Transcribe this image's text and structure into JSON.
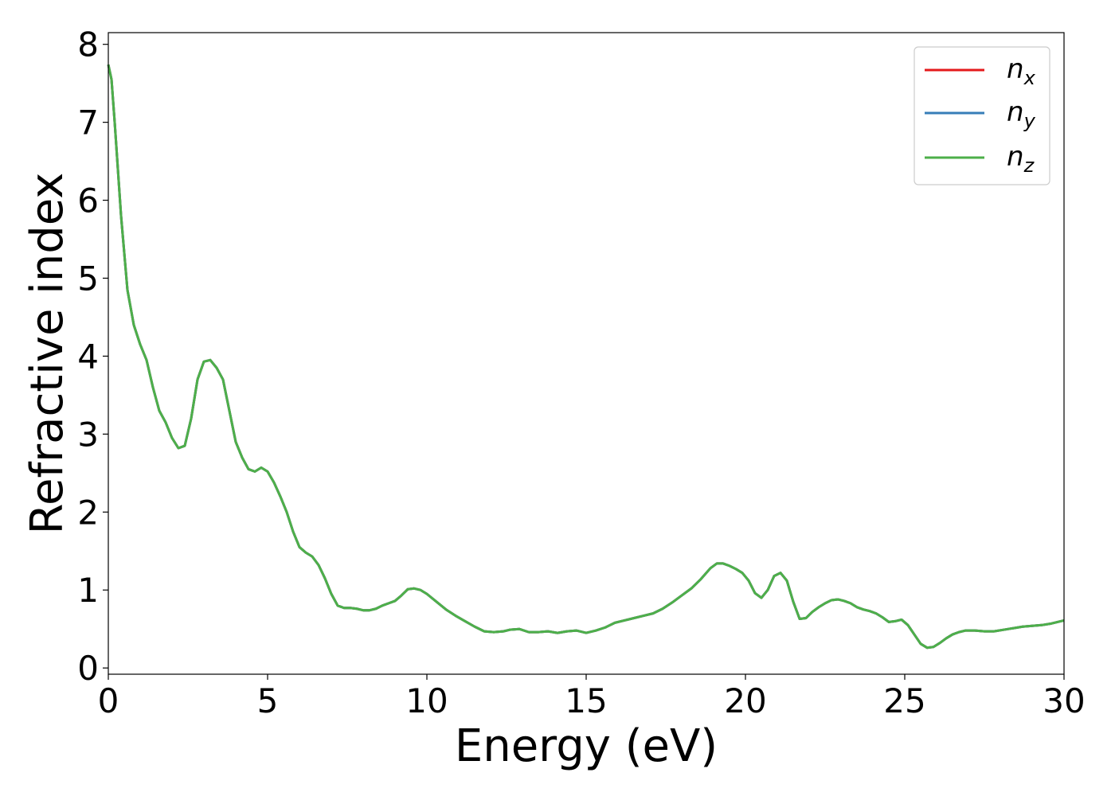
{
  "chart_data": {
    "type": "line",
    "xlabel": "Energy (eV)",
    "ylabel": "Refractive index",
    "xlim": [
      0,
      30
    ],
    "ylim": [
      -0.08,
      8.15
    ],
    "xticks": [
      0,
      5,
      10,
      15,
      20,
      25,
      30
    ],
    "yticks": [
      0,
      1,
      2,
      3,
      4,
      5,
      6,
      7,
      8
    ],
    "grid": false,
    "legend": {
      "placement": "top-right"
    },
    "x": [
      0.0,
      0.1,
      0.2,
      0.4,
      0.6,
      0.8,
      1.0,
      1.2,
      1.4,
      1.6,
      1.8,
      2.0,
      2.2,
      2.4,
      2.6,
      2.8,
      3.0,
      3.2,
      3.4,
      3.6,
      3.8,
      4.0,
      4.2,
      4.4,
      4.6,
      4.8,
      5.0,
      5.2,
      5.4,
      5.6,
      5.8,
      6.0,
      6.2,
      6.4,
      6.6,
      6.8,
      7.0,
      7.2,
      7.4,
      7.6,
      7.8,
      8.0,
      8.2,
      8.4,
      8.6,
      8.8,
      9.0,
      9.2,
      9.4,
      9.6,
      9.8,
      10.0,
      10.3,
      10.6,
      10.9,
      11.2,
      11.5,
      11.8,
      12.1,
      12.4,
      12.6,
      12.9,
      13.2,
      13.5,
      13.8,
      14.1,
      14.4,
      14.7,
      15.0,
      15.3,
      15.6,
      15.9,
      16.2,
      16.5,
      16.8,
      17.1,
      17.4,
      17.7,
      18.0,
      18.3,
      18.6,
      18.9,
      19.1,
      19.3,
      19.5,
      19.7,
      19.9,
      20.1,
      20.3,
      20.5,
      20.7,
      20.9,
      21.1,
      21.3,
      21.5,
      21.7,
      21.9,
      22.1,
      22.3,
      22.5,
      22.7,
      22.9,
      23.1,
      23.3,
      23.5,
      23.7,
      23.9,
      24.1,
      24.3,
      24.5,
      24.7,
      24.9,
      25.1,
      25.3,
      25.5,
      25.7,
      25.9,
      26.1,
      26.3,
      26.5,
      26.7,
      26.9,
      27.2,
      27.5,
      27.8,
      28.1,
      28.4,
      28.7,
      29.0,
      29.3,
      29.6,
      30.0
    ],
    "series": [
      {
        "name": "n_x",
        "color": "#e41a1c",
        "values": [
          7.74,
          7.55,
          7.0,
          5.8,
          4.85,
          4.4,
          4.15,
          3.95,
          3.6,
          3.3,
          3.15,
          2.95,
          2.82,
          2.85,
          3.2,
          3.7,
          3.93,
          3.95,
          3.85,
          3.7,
          3.3,
          2.9,
          2.7,
          2.55,
          2.52,
          2.57,
          2.52,
          2.38,
          2.2,
          2.0,
          1.75,
          1.55,
          1.48,
          1.43,
          1.32,
          1.15,
          0.95,
          0.8,
          0.77,
          0.77,
          0.76,
          0.74,
          0.74,
          0.76,
          0.8,
          0.83,
          0.86,
          0.93,
          1.01,
          1.02,
          1.0,
          0.95,
          0.85,
          0.75,
          0.67,
          0.6,
          0.53,
          0.47,
          0.46,
          0.47,
          0.49,
          0.5,
          0.46,
          0.46,
          0.47,
          0.45,
          0.47,
          0.48,
          0.45,
          0.48,
          0.52,
          0.58,
          0.61,
          0.64,
          0.67,
          0.7,
          0.76,
          0.84,
          0.93,
          1.02,
          1.14,
          1.28,
          1.34,
          1.34,
          1.31,
          1.27,
          1.22,
          1.12,
          0.96,
          0.9,
          1.0,
          1.18,
          1.22,
          1.12,
          0.85,
          0.63,
          0.64,
          0.72,
          0.78,
          0.83,
          0.87,
          0.88,
          0.86,
          0.83,
          0.78,
          0.75,
          0.73,
          0.7,
          0.65,
          0.59,
          0.6,
          0.62,
          0.55,
          0.43,
          0.31,
          0.26,
          0.27,
          0.32,
          0.38,
          0.43,
          0.46,
          0.48,
          0.48,
          0.47,
          0.47,
          0.49,
          0.51,
          0.53,
          0.54,
          0.55,
          0.57,
          0.61
        ]
      },
      {
        "name": "n_y",
        "color": "#377eb8",
        "values": [
          7.74,
          7.55,
          7.0,
          5.8,
          4.85,
          4.4,
          4.15,
          3.95,
          3.6,
          3.3,
          3.15,
          2.95,
          2.82,
          2.85,
          3.2,
          3.7,
          3.93,
          3.95,
          3.85,
          3.7,
          3.3,
          2.9,
          2.7,
          2.55,
          2.52,
          2.57,
          2.52,
          2.38,
          2.2,
          2.0,
          1.75,
          1.55,
          1.48,
          1.43,
          1.32,
          1.15,
          0.95,
          0.8,
          0.77,
          0.77,
          0.76,
          0.74,
          0.74,
          0.76,
          0.8,
          0.83,
          0.86,
          0.93,
          1.01,
          1.02,
          1.0,
          0.95,
          0.85,
          0.75,
          0.67,
          0.6,
          0.53,
          0.47,
          0.46,
          0.47,
          0.49,
          0.5,
          0.46,
          0.46,
          0.47,
          0.45,
          0.47,
          0.48,
          0.45,
          0.48,
          0.52,
          0.58,
          0.61,
          0.64,
          0.67,
          0.7,
          0.76,
          0.84,
          0.93,
          1.02,
          1.14,
          1.28,
          1.34,
          1.34,
          1.31,
          1.27,
          1.22,
          1.12,
          0.96,
          0.9,
          1.0,
          1.18,
          1.22,
          1.12,
          0.85,
          0.63,
          0.64,
          0.72,
          0.78,
          0.83,
          0.87,
          0.88,
          0.86,
          0.83,
          0.78,
          0.75,
          0.73,
          0.7,
          0.65,
          0.59,
          0.6,
          0.62,
          0.55,
          0.43,
          0.31,
          0.26,
          0.27,
          0.32,
          0.38,
          0.43,
          0.46,
          0.48,
          0.48,
          0.47,
          0.47,
          0.49,
          0.51,
          0.53,
          0.54,
          0.55,
          0.57,
          0.61
        ]
      },
      {
        "name": "n_z",
        "color": "#4daf4a",
        "values": [
          7.74,
          7.55,
          7.0,
          5.8,
          4.85,
          4.4,
          4.15,
          3.95,
          3.6,
          3.3,
          3.15,
          2.95,
          2.82,
          2.85,
          3.2,
          3.7,
          3.93,
          3.95,
          3.85,
          3.7,
          3.3,
          2.9,
          2.7,
          2.55,
          2.52,
          2.57,
          2.52,
          2.38,
          2.2,
          2.0,
          1.75,
          1.55,
          1.48,
          1.43,
          1.32,
          1.15,
          0.95,
          0.8,
          0.77,
          0.77,
          0.76,
          0.74,
          0.74,
          0.76,
          0.8,
          0.83,
          0.86,
          0.93,
          1.01,
          1.02,
          1.0,
          0.95,
          0.85,
          0.75,
          0.67,
          0.6,
          0.53,
          0.47,
          0.46,
          0.47,
          0.49,
          0.5,
          0.46,
          0.46,
          0.47,
          0.45,
          0.47,
          0.48,
          0.45,
          0.48,
          0.52,
          0.58,
          0.61,
          0.64,
          0.67,
          0.7,
          0.76,
          0.84,
          0.93,
          1.02,
          1.14,
          1.28,
          1.34,
          1.34,
          1.31,
          1.27,
          1.22,
          1.12,
          0.96,
          0.9,
          1.0,
          1.18,
          1.22,
          1.12,
          0.85,
          0.63,
          0.64,
          0.72,
          0.78,
          0.83,
          0.87,
          0.88,
          0.86,
          0.83,
          0.78,
          0.75,
          0.73,
          0.7,
          0.65,
          0.59,
          0.6,
          0.62,
          0.55,
          0.43,
          0.31,
          0.26,
          0.27,
          0.32,
          0.38,
          0.43,
          0.46,
          0.48,
          0.48,
          0.47,
          0.47,
          0.49,
          0.51,
          0.53,
          0.54,
          0.55,
          0.57,
          0.61
        ]
      }
    ]
  },
  "legend_labels": [
    {
      "main": "n",
      "sub": "x"
    },
    {
      "main": "n",
      "sub": "y"
    },
    {
      "main": "n",
      "sub": "z"
    }
  ]
}
